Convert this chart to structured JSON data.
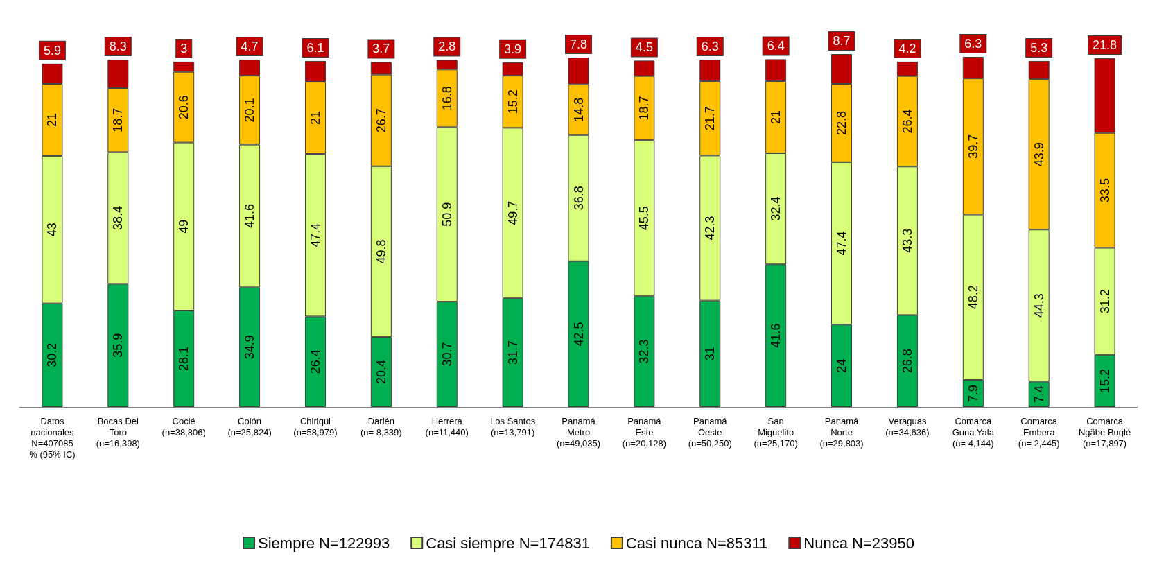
{
  "chart_data": {
    "type": "bar",
    "stacked": true,
    "data_labels": true,
    "legend": "bottom",
    "categories": [
      "Datos\nnacionales\nN=407085\n% (95% IC)",
      "Bocas Del\nToro\n(n=16,398)",
      "Coclé\n(n=38,806)",
      "Colón\n(n=25,824)",
      "Chiriqui\n(n=58,979)",
      "Darién\n(n= 8,339)",
      "Herrera\n(n=11,440)",
      "Los Santos\n(n=13,791)",
      "Panamá\nMetro\n(n=49,035)",
      "Panamá\nEste\n(n=20,128)",
      "Panamá\nOeste\n(n=50,250)",
      "San\nMiguelito\n(n=25,170)",
      "Panamá\nNorte\n(n=29,803)",
      "Veraguas\n(n=34,636)",
      "Comarca\nGuna Yala\n(n= 4,144)",
      "Comarca\nEmbera\n(n= 2,445)",
      "Comarca\nNgäbe Buglé\n(n=17,897)"
    ],
    "series": [
      {
        "name": "Siempre N=122993",
        "color": "#00b050",
        "values": [
          30.2,
          35.9,
          28.1,
          34.9,
          26.4,
          20.4,
          30.7,
          31.7,
          42.5,
          32.3,
          31,
          41.6,
          24,
          26.8,
          7.9,
          7.4,
          15.2
        ]
      },
      {
        "name": "Casi siempre N=174831",
        "color": "#d9ff7a",
        "values": [
          43,
          38.4,
          49,
          41.6,
          47.4,
          49.8,
          50.9,
          49.7,
          36.8,
          45.5,
          42.3,
          32.4,
          47.4,
          43.3,
          48.2,
          44.3,
          31.2
        ]
      },
      {
        "name": "Casi nunca N=85311",
        "color": "#ffc000",
        "values": [
          21,
          18.7,
          20.6,
          20.1,
          21,
          26.7,
          16.8,
          15.2,
          14.8,
          18.7,
          21.7,
          21,
          22.8,
          26.4,
          39.7,
          43.9,
          33.5
        ]
      },
      {
        "name": "Nunca N=23950",
        "color": "#c00000",
        "values": [
          5.9,
          8.3,
          3,
          4.7,
          6.1,
          3.7,
          2.8,
          3.9,
          7.8,
          4.5,
          6.3,
          6.4,
          8.7,
          4.2,
          6.3,
          5.3,
          21.8
        ]
      }
    ]
  }
}
